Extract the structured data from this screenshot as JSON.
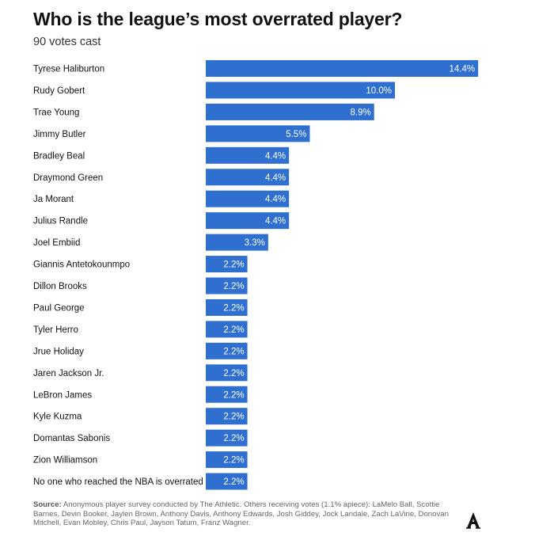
{
  "header": {
    "title": "Who is the league’s most overrated player?",
    "subtitle": "90 votes cast"
  },
  "footer": {
    "source_label": "Source:",
    "source_text": "Anonymous player survey conducted by The Athletic. Others receiving votes (1.1% apiece): LaMelo Ball, Scottie Barnes, Devin Booker, Jaylen Brown, Anthony Davis, Anthony Edwards, Josh Giddey, Jock Landale, Zach LaVine, Donovan Mitchell, Evan Mobley, Chris Paul, Jayson Tatum, Franz Wagner.",
    "logo_letter": "A"
  },
  "colors": {
    "bar": "#2e6fd0",
    "label_on_bar": "#ffffff",
    "text": "#121212"
  },
  "chart_data": {
    "type": "bar",
    "orientation": "horizontal",
    "title": "Who is the league’s most overrated player?",
    "subtitle": "90 votes cast",
    "value_suffix": "%",
    "xlim": [
      0,
      15
    ],
    "grid": false,
    "categories": [
      "Tyrese Haliburton",
      "Rudy Gobert",
      "Trae Young",
      "Jimmy Butler",
      "Bradley Beal",
      "Draymond Green",
      "Ja Morant",
      "Julius Randle",
      "Joel Embiid",
      "Giannis Antetokounmpo",
      "Dillon Brooks",
      "Paul George",
      "Tyler Herro",
      "Jrue Holiday",
      "Jaren Jackson Jr.",
      "LeBron James",
      "Kyle Kuzma",
      "Domantas Sabonis",
      "Zion Williamson",
      "No one who reached the NBA is overrated"
    ],
    "values": [
      14.4,
      10.0,
      8.9,
      5.5,
      4.4,
      4.4,
      4.4,
      4.4,
      3.3,
      2.2,
      2.2,
      2.2,
      2.2,
      2.2,
      2.2,
      2.2,
      2.2,
      2.2,
      2.2,
      2.2
    ],
    "value_labels": [
      "14.4%",
      "10.0%",
      "8.9%",
      "5.5%",
      "4.4%",
      "4.4%",
      "4.4%",
      "4.4%",
      "3.3%",
      "2.2%",
      "2.2%",
      "2.2%",
      "2.2%",
      "2.2%",
      "2.2%",
      "2.2%",
      "2.2%",
      "2.2%",
      "2.2%",
      "2.2%"
    ]
  }
}
